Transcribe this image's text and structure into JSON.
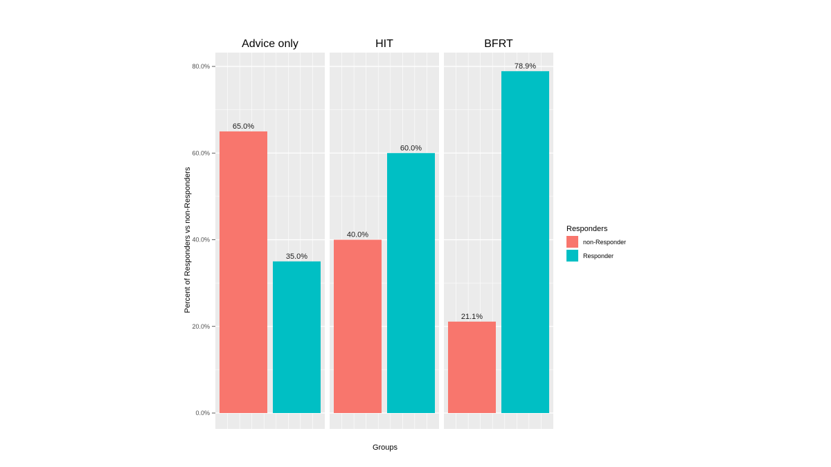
{
  "chart_data": {
    "type": "bar",
    "title": "",
    "facets": [
      "Advice only",
      "HIT",
      "BFRT"
    ],
    "xlabel": "Groups",
    "ylabel": "Percent of Responders vs non-Responders",
    "ylim": [
      0,
      80
    ],
    "yticks": [
      0,
      20,
      40,
      60,
      80
    ],
    "ytick_labels": [
      "0.0%",
      "20.0%",
      "40.0%",
      "60.0%",
      "80.0%"
    ],
    "grid": true,
    "legend": {
      "title": "Responders",
      "position": "right"
    },
    "series": [
      {
        "name": "non-Responder",
        "color": "#F8766D",
        "values": [
          65.0,
          40.0,
          21.1
        ],
        "labels": [
          "65.0%",
          "40.0%",
          "21.1%"
        ]
      },
      {
        "name": "Responder",
        "color": "#00BFC4",
        "values": [
          35.0,
          60.0,
          78.9
        ],
        "labels": [
          "35.0%",
          "60.0%",
          "78.9%"
        ]
      }
    ]
  }
}
